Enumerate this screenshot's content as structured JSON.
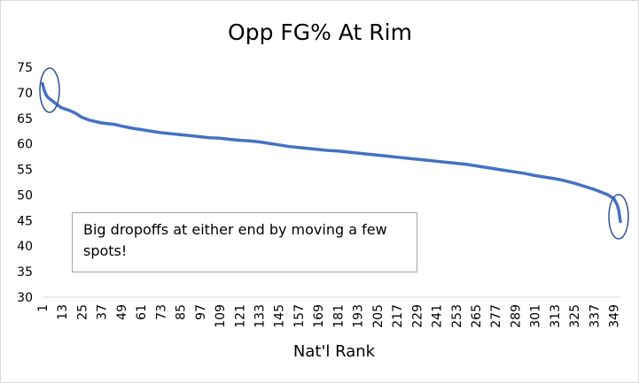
{
  "chart_data": {
    "type": "line",
    "title": "Opp FG% At Rim",
    "xlabel": "Nat'l Rank",
    "ylabel": "",
    "ylim": [
      30,
      75
    ],
    "yticks": [
      30,
      35,
      40,
      45,
      50,
      55,
      60,
      65,
      70,
      75
    ],
    "xlim": [
      1,
      353
    ],
    "xticks": [
      1,
      13,
      25,
      37,
      49,
      61,
      73,
      85,
      97,
      109,
      121,
      133,
      145,
      157,
      169,
      181,
      193,
      205,
      217,
      229,
      241,
      253,
      265,
      277,
      289,
      301,
      313,
      325,
      337,
      349
    ],
    "grid": false,
    "legend": "none",
    "series": [
      {
        "color": "#4472c4",
        "x": [
          1,
          2,
          3,
          4,
          5,
          7,
          9,
          11,
          13,
          17,
          21,
          25,
          30,
          37,
          45,
          49,
          55,
          61,
          67,
          73,
          79,
          85,
          91,
          97,
          103,
          109,
          115,
          121,
          127,
          133,
          139,
          145,
          151,
          157,
          163,
          169,
          175,
          181,
          187,
          193,
          199,
          205,
          211,
          217,
          223,
          229,
          235,
          241,
          247,
          253,
          259,
          265,
          271,
          277,
          283,
          289,
          295,
          301,
          307,
          313,
          319,
          325,
          331,
          337,
          341,
          345,
          347,
          349,
          350,
          351,
          352,
          353
        ],
        "values": [
          71.8,
          70.5,
          69.7,
          69.2,
          68.9,
          68.4,
          67.9,
          67.4,
          67.0,
          66.6,
          66.0,
          65.2,
          64.6,
          64.1,
          63.8,
          63.5,
          63.1,
          62.8,
          62.5,
          62.2,
          62.0,
          61.8,
          61.6,
          61.4,
          61.2,
          61.1,
          60.9,
          60.7,
          60.6,
          60.4,
          60.1,
          59.8,
          59.5,
          59.3,
          59.1,
          58.9,
          58.7,
          58.6,
          58.4,
          58.2,
          58.0,
          57.8,
          57.6,
          57.4,
          57.2,
          57.0,
          56.8,
          56.6,
          56.4,
          56.2,
          56.0,
          55.7,
          55.4,
          55.1,
          54.8,
          54.5,
          54.2,
          53.8,
          53.5,
          53.2,
          52.8,
          52.3,
          51.7,
          51.1,
          50.6,
          50.1,
          49.7,
          49.3,
          48.7,
          48.1,
          47.0,
          44.8
        ]
      }
    ],
    "annotations": [
      {
        "text": "Big dropoffs at either end by moving a few spots!"
      }
    ]
  },
  "highlight_color": "#2f5597"
}
